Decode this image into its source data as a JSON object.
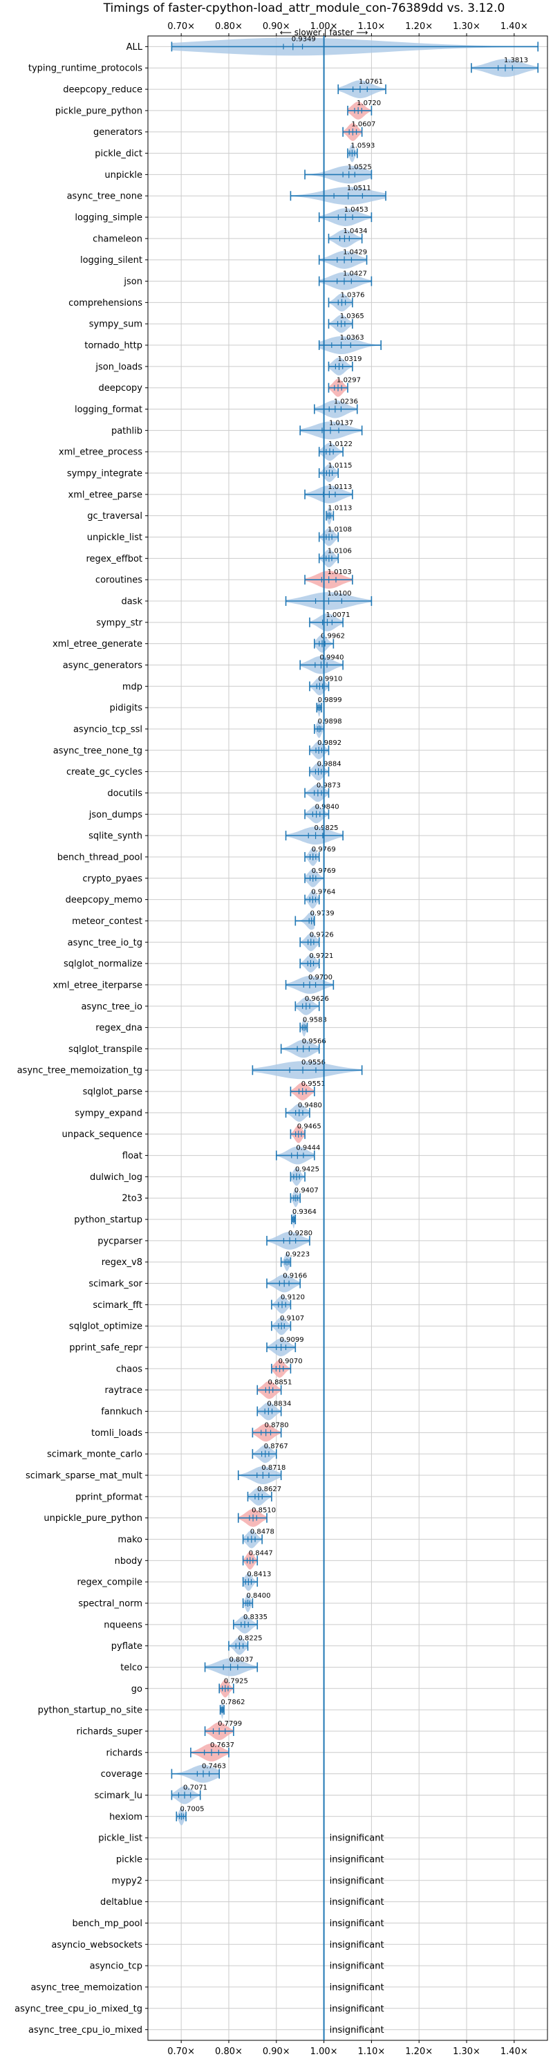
{
  "chart_data": {
    "type": "violin",
    "title": "Timings of faster-cpython-load_attr_module_con-76389dd vs. 3.12.0",
    "direction_label": "⟵ slower | faster ⟶",
    "xlim": [
      0.63,
      1.47
    ],
    "reference_line": 1.0,
    "x_ticks": [
      0.7,
      0.8,
      0.9,
      1.0,
      1.1,
      1.2,
      1.3,
      1.4
    ],
    "x_tick_labels": [
      "0.70×",
      "0.80×",
      "0.90×",
      "1.00×",
      "1.10×",
      "1.20×",
      "1.30×",
      "1.40×"
    ],
    "colors": {
      "violin": "#aac8e6",
      "violin_highlight": "#f4a7a7",
      "line": "#1f77b4",
      "grid": "#cccccc"
    },
    "insignificant_label": "insignificant",
    "rows": [
      {
        "name": "ALL",
        "label": "0.9349",
        "value": 0.9349,
        "min": 0.68,
        "max": 1.45,
        "spread": 0.04,
        "color": "blue"
      },
      {
        "name": "typing_runtime_protocols",
        "label": "1.3813",
        "value": 1.3813,
        "min": 1.31,
        "max": 1.45,
        "spread": 0.03,
        "color": "blue"
      },
      {
        "name": "deepcopy_reduce",
        "label": "1.0761",
        "value": 1.0761,
        "min": 1.03,
        "max": 1.13,
        "spread": 0.03,
        "color": "blue"
      },
      {
        "name": "pickle_pure_python",
        "label": "1.0720",
        "value": 1.072,
        "min": 1.05,
        "max": 1.1,
        "spread": 0.015,
        "color": "red"
      },
      {
        "name": "generators",
        "label": "1.0607",
        "value": 1.0607,
        "min": 1.04,
        "max": 1.08,
        "spread": 0.015,
        "color": "red"
      },
      {
        "name": "pickle_dict",
        "label": "1.0593",
        "value": 1.0593,
        "min": 1.05,
        "max": 1.07,
        "spread": 0.01,
        "color": "blue"
      },
      {
        "name": "unpickle",
        "label": "1.0525",
        "value": 1.0525,
        "min": 0.96,
        "max": 1.1,
        "spread": 0.025,
        "color": "blue"
      },
      {
        "name": "async_tree_none",
        "label": "1.0511",
        "value": 1.0511,
        "min": 0.93,
        "max": 1.13,
        "spread": 0.06,
        "color": "blue"
      },
      {
        "name": "logging_simple",
        "label": "1.0453",
        "value": 1.0453,
        "min": 0.99,
        "max": 1.1,
        "spread": 0.03,
        "color": "blue"
      },
      {
        "name": "chameleon",
        "label": "1.0434",
        "value": 1.0434,
        "min": 1.01,
        "max": 1.08,
        "spread": 0.02,
        "color": "blue"
      },
      {
        "name": "logging_silent",
        "label": "1.0429",
        "value": 1.0429,
        "min": 0.99,
        "max": 1.09,
        "spread": 0.03,
        "color": "blue"
      },
      {
        "name": "json",
        "label": "1.0427",
        "value": 1.0427,
        "min": 0.99,
        "max": 1.1,
        "spread": 0.03,
        "color": "blue"
      },
      {
        "name": "comprehensions",
        "label": "1.0376",
        "value": 1.0376,
        "min": 1.01,
        "max": 1.06,
        "spread": 0.015,
        "color": "blue"
      },
      {
        "name": "sympy_sum",
        "label": "1.0365",
        "value": 1.0365,
        "min": 1.01,
        "max": 1.06,
        "spread": 0.015,
        "color": "blue"
      },
      {
        "name": "tornado_http",
        "label": "1.0363",
        "value": 1.0363,
        "min": 0.99,
        "max": 1.12,
        "spread": 0.04,
        "color": "blue"
      },
      {
        "name": "json_loads",
        "label": "1.0319",
        "value": 1.0319,
        "min": 1.01,
        "max": 1.06,
        "spread": 0.015,
        "color": "blue"
      },
      {
        "name": "deepcopy",
        "label": "1.0297",
        "value": 1.0297,
        "min": 1.01,
        "max": 1.05,
        "spread": 0.015,
        "color": "red"
      },
      {
        "name": "logging_format",
        "label": "1.0236",
        "value": 1.0236,
        "min": 0.98,
        "max": 1.07,
        "spread": 0.025,
        "color": "blue"
      },
      {
        "name": "pathlib",
        "label": "1.0137",
        "value": 1.0137,
        "min": 0.95,
        "max": 1.08,
        "spread": 0.035,
        "color": "blue"
      },
      {
        "name": "xml_etree_process",
        "label": "1.0122",
        "value": 1.0122,
        "min": 0.99,
        "max": 1.04,
        "spread": 0.015,
        "color": "blue"
      },
      {
        "name": "sympy_integrate",
        "label": "1.0115",
        "value": 1.0115,
        "min": 0.99,
        "max": 1.03,
        "spread": 0.012,
        "color": "blue"
      },
      {
        "name": "xml_etree_parse",
        "label": "1.0113",
        "value": 1.0113,
        "min": 0.96,
        "max": 1.06,
        "spread": 0.025,
        "color": "blue"
      },
      {
        "name": "gc_traversal",
        "label": "1.0113",
        "value": 1.0113,
        "min": 1.005,
        "max": 1.02,
        "spread": 0.006,
        "color": "blue"
      },
      {
        "name": "unpickle_list",
        "label": "1.0108",
        "value": 1.0108,
        "min": 0.99,
        "max": 1.03,
        "spread": 0.012,
        "color": "blue"
      },
      {
        "name": "regex_effbot",
        "label": "1.0106",
        "value": 1.0106,
        "min": 0.99,
        "max": 1.03,
        "spread": 0.012,
        "color": "blue"
      },
      {
        "name": "coroutines",
        "label": "1.0103",
        "value": 1.0103,
        "min": 0.96,
        "max": 1.06,
        "spread": 0.03,
        "color": "red"
      },
      {
        "name": "dask",
        "label": "1.0100",
        "value": 1.01,
        "min": 0.92,
        "max": 1.1,
        "spread": 0.055,
        "color": "blue"
      },
      {
        "name": "sympy_str",
        "label": "1.0071",
        "value": 1.0071,
        "min": 0.97,
        "max": 1.04,
        "spread": 0.02,
        "color": "blue"
      },
      {
        "name": "xml_etree_generate",
        "label": "0.9962",
        "value": 0.9962,
        "min": 0.98,
        "max": 1.02,
        "spread": 0.012,
        "color": "blue"
      },
      {
        "name": "async_generators",
        "label": "0.9940",
        "value": 0.994,
        "min": 0.95,
        "max": 1.04,
        "spread": 0.025,
        "color": "blue"
      },
      {
        "name": "mdp",
        "label": "0.9910",
        "value": 0.991,
        "min": 0.97,
        "max": 1.01,
        "spread": 0.012,
        "color": "blue"
      },
      {
        "name": "pidigits",
        "label": "0.9899",
        "value": 0.9899,
        "min": 0.985,
        "max": 0.995,
        "spread": 0.005,
        "color": "blue"
      },
      {
        "name": "asyncio_tcp_ssl",
        "label": "0.9898",
        "value": 0.9898,
        "min": 0.98,
        "max": 1.0,
        "spread": 0.007,
        "color": "blue"
      },
      {
        "name": "async_tree_none_tg",
        "label": "0.9892",
        "value": 0.9892,
        "min": 0.97,
        "max": 1.01,
        "spread": 0.012,
        "color": "blue"
      },
      {
        "name": "create_gc_cycles",
        "label": "0.9884",
        "value": 0.9884,
        "min": 0.97,
        "max": 1.01,
        "spread": 0.012,
        "color": "blue"
      },
      {
        "name": "docutils",
        "label": "0.9873",
        "value": 0.9873,
        "min": 0.96,
        "max": 1.01,
        "spread": 0.015,
        "color": "blue"
      },
      {
        "name": "json_dumps",
        "label": "0.9840",
        "value": 0.984,
        "min": 0.96,
        "max": 1.01,
        "spread": 0.015,
        "color": "blue"
      },
      {
        "name": "sqlite_synth",
        "label": "0.9825",
        "value": 0.9825,
        "min": 0.92,
        "max": 1.04,
        "spread": 0.03,
        "color": "blue"
      },
      {
        "name": "bench_thread_pool",
        "label": "0.9769",
        "value": 0.9769,
        "min": 0.96,
        "max": 0.99,
        "spread": 0.012,
        "color": "blue"
      },
      {
        "name": "crypto_pyaes",
        "label": "0.9769",
        "value": 0.9769,
        "min": 0.96,
        "max": 1.0,
        "spread": 0.012,
        "color": "blue"
      },
      {
        "name": "deepcopy_memo",
        "label": "0.9764",
        "value": 0.9764,
        "min": 0.96,
        "max": 0.99,
        "spread": 0.012,
        "color": "blue"
      },
      {
        "name": "meteor_contest",
        "label": "0.9739",
        "value": 0.9739,
        "min": 0.94,
        "max": 0.98,
        "spread": 0.01,
        "color": "blue"
      },
      {
        "name": "async_tree_io_tg",
        "label": "0.9726",
        "value": 0.9726,
        "min": 0.95,
        "max": 0.99,
        "spread": 0.012,
        "color": "blue"
      },
      {
        "name": "sqlglot_normalize",
        "label": "0.9721",
        "value": 0.9721,
        "min": 0.95,
        "max": 0.99,
        "spread": 0.012,
        "color": "blue"
      },
      {
        "name": "xml_etree_iterparse",
        "label": "0.9700",
        "value": 0.97,
        "min": 0.92,
        "max": 1.02,
        "spread": 0.025,
        "color": "blue"
      },
      {
        "name": "async_tree_io",
        "label": "0.9626",
        "value": 0.9626,
        "min": 0.94,
        "max": 0.99,
        "spread": 0.015,
        "color": "blue"
      },
      {
        "name": "regex_dna",
        "label": "0.9583",
        "value": 0.9583,
        "min": 0.95,
        "max": 0.965,
        "spread": 0.007,
        "color": "blue"
      },
      {
        "name": "sqlglot_transpile",
        "label": "0.9566",
        "value": 0.9566,
        "min": 0.91,
        "max": 0.99,
        "spread": 0.025,
        "color": "blue"
      },
      {
        "name": "async_tree_memoization_tg",
        "label": "0.9556",
        "value": 0.9556,
        "min": 0.85,
        "max": 1.08,
        "spread": 0.055,
        "color": "blue"
      },
      {
        "name": "sqlglot_parse",
        "label": "0.9551",
        "value": 0.9551,
        "min": 0.93,
        "max": 0.98,
        "spread": 0.015,
        "color": "red"
      },
      {
        "name": "sympy_expand",
        "label": "0.9480",
        "value": 0.948,
        "min": 0.92,
        "max": 0.97,
        "spread": 0.015,
        "color": "blue"
      },
      {
        "name": "unpack_sequence",
        "label": "0.9465",
        "value": 0.9465,
        "min": 0.93,
        "max": 0.96,
        "spread": 0.012,
        "color": "red"
      },
      {
        "name": "float",
        "label": "0.9444",
        "value": 0.9444,
        "min": 0.9,
        "max": 0.98,
        "spread": 0.025,
        "color": "blue"
      },
      {
        "name": "dulwich_log",
        "label": "0.9425",
        "value": 0.9425,
        "min": 0.93,
        "max": 0.96,
        "spread": 0.012,
        "color": "blue"
      },
      {
        "name": "2to3",
        "label": "0.9407",
        "value": 0.9407,
        "min": 0.93,
        "max": 0.95,
        "spread": 0.008,
        "color": "blue"
      },
      {
        "name": "python_startup",
        "label": "0.9364",
        "value": 0.9364,
        "min": 0.932,
        "max": 0.94,
        "spread": 0.004,
        "color": "blue"
      },
      {
        "name": "pycparser",
        "label": "0.9280",
        "value": 0.928,
        "min": 0.88,
        "max": 0.97,
        "spread": 0.025,
        "color": "blue"
      },
      {
        "name": "regex_v8",
        "label": "0.9223",
        "value": 0.9223,
        "min": 0.91,
        "max": 0.93,
        "spread": 0.008,
        "color": "blue"
      },
      {
        "name": "scimark_sor",
        "label": "0.9166",
        "value": 0.9166,
        "min": 0.88,
        "max": 0.95,
        "spread": 0.02,
        "color": "blue"
      },
      {
        "name": "scimark_fft",
        "label": "0.9120",
        "value": 0.912,
        "min": 0.89,
        "max": 0.93,
        "spread": 0.015,
        "color": "blue"
      },
      {
        "name": "sqlglot_optimize",
        "label": "0.9107",
        "value": 0.9107,
        "min": 0.89,
        "max": 0.93,
        "spread": 0.012,
        "color": "blue"
      },
      {
        "name": "pprint_safe_repr",
        "label": "0.9099",
        "value": 0.9099,
        "min": 0.88,
        "max": 0.94,
        "spread": 0.02,
        "color": "blue"
      },
      {
        "name": "chaos",
        "label": "0.9070",
        "value": 0.907,
        "min": 0.89,
        "max": 0.93,
        "spread": 0.015,
        "color": "red"
      },
      {
        "name": "raytrace",
        "label": "0.8851",
        "value": 0.8851,
        "min": 0.86,
        "max": 0.91,
        "spread": 0.015,
        "color": "red"
      },
      {
        "name": "fannkuch",
        "label": "0.8834",
        "value": 0.8834,
        "min": 0.86,
        "max": 0.91,
        "spread": 0.015,
        "color": "blue"
      },
      {
        "name": "tomli_loads",
        "label": "0.8780",
        "value": 0.878,
        "min": 0.85,
        "max": 0.91,
        "spread": 0.02,
        "color": "red"
      },
      {
        "name": "scimark_monte_carlo",
        "label": "0.8767",
        "value": 0.8767,
        "min": 0.85,
        "max": 0.9,
        "spread": 0.015,
        "color": "blue"
      },
      {
        "name": "scimark_sparse_mat_mult",
        "label": "0.8718",
        "value": 0.8718,
        "min": 0.82,
        "max": 0.91,
        "spread": 0.025,
        "color": "blue"
      },
      {
        "name": "pprint_pformat",
        "label": "0.8627",
        "value": 0.8627,
        "min": 0.84,
        "max": 0.89,
        "spread": 0.015,
        "color": "blue"
      },
      {
        "name": "unpickle_pure_python",
        "label": "0.8510",
        "value": 0.851,
        "min": 0.82,
        "max": 0.88,
        "spread": 0.015,
        "color": "red"
      },
      {
        "name": "mako",
        "label": "0.8478",
        "value": 0.8478,
        "min": 0.83,
        "max": 0.87,
        "spread": 0.015,
        "color": "blue"
      },
      {
        "name": "nbody",
        "label": "0.8447",
        "value": 0.8447,
        "min": 0.83,
        "max": 0.86,
        "spread": 0.012,
        "color": "red"
      },
      {
        "name": "regex_compile",
        "label": "0.8413",
        "value": 0.8413,
        "min": 0.83,
        "max": 0.86,
        "spread": 0.012,
        "color": "blue"
      },
      {
        "name": "spectral_norm",
        "label": "0.8400",
        "value": 0.84,
        "min": 0.83,
        "max": 0.85,
        "spread": 0.008,
        "color": "blue"
      },
      {
        "name": "nqueens",
        "label": "0.8335",
        "value": 0.8335,
        "min": 0.81,
        "max": 0.86,
        "spread": 0.015,
        "color": "blue"
      },
      {
        "name": "pyflate",
        "label": "0.8225",
        "value": 0.8225,
        "min": 0.8,
        "max": 0.84,
        "spread": 0.015,
        "color": "blue"
      },
      {
        "name": "telco",
        "label": "0.8037",
        "value": 0.8037,
        "min": 0.75,
        "max": 0.86,
        "spread": 0.03,
        "color": "blue"
      },
      {
        "name": "go",
        "label": "0.7925",
        "value": 0.7925,
        "min": 0.78,
        "max": 0.81,
        "spread": 0.012,
        "color": "red"
      },
      {
        "name": "python_startup_no_site",
        "label": "0.7862",
        "value": 0.7862,
        "min": 0.782,
        "max": 0.79,
        "spread": 0.004,
        "color": "blue"
      },
      {
        "name": "richards_super",
        "label": "0.7799",
        "value": 0.7799,
        "min": 0.75,
        "max": 0.81,
        "spread": 0.025,
        "color": "red"
      },
      {
        "name": "richards",
        "label": "0.7637",
        "value": 0.7637,
        "min": 0.72,
        "max": 0.8,
        "spread": 0.03,
        "color": "red"
      },
      {
        "name": "coverage",
        "label": "0.7463",
        "value": 0.7463,
        "min": 0.68,
        "max": 0.78,
        "spread": 0.025,
        "color": "blue"
      },
      {
        "name": "scimark_lu",
        "label": "0.7071",
        "value": 0.7071,
        "min": 0.68,
        "max": 0.74,
        "spread": 0.025,
        "color": "blue"
      },
      {
        "name": "hexiom",
        "label": "0.7005",
        "value": 0.7005,
        "min": 0.69,
        "max": 0.71,
        "spread": 0.008,
        "color": "blue"
      },
      {
        "name": "pickle_list",
        "insignificant": true
      },
      {
        "name": "pickle",
        "insignificant": true
      },
      {
        "name": "mypy2",
        "insignificant": true
      },
      {
        "name": "deltablue",
        "insignificant": true
      },
      {
        "name": "bench_mp_pool",
        "insignificant": true
      },
      {
        "name": "asyncio_websockets",
        "insignificant": true
      },
      {
        "name": "asyncio_tcp",
        "insignificant": true
      },
      {
        "name": "async_tree_memoization",
        "insignificant": true
      },
      {
        "name": "async_tree_cpu_io_mixed_tg",
        "insignificant": true
      },
      {
        "name": "async_tree_cpu_io_mixed",
        "insignificant": true
      }
    ]
  }
}
